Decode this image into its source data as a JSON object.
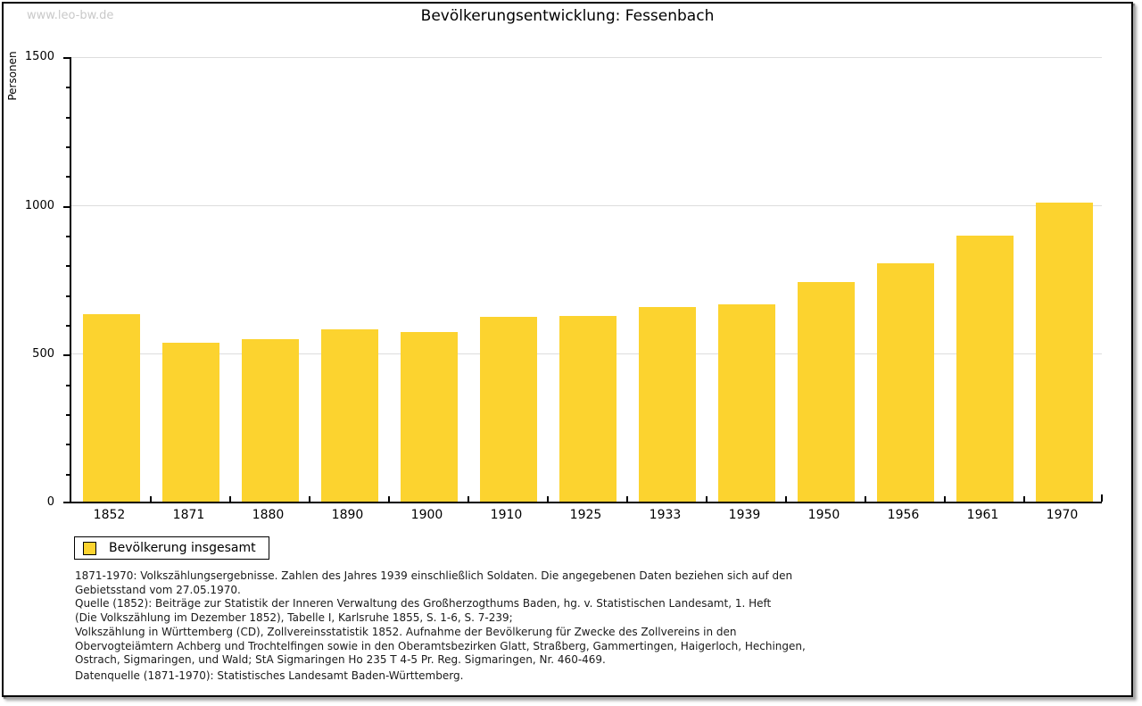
{
  "page": {
    "watermark": "www.leo-bw.de"
  },
  "chart_data": {
    "type": "bar",
    "title": "Bevölkerungsentwicklung: Fessenbach",
    "xlabel": "",
    "ylabel": "Personen",
    "categories": [
      "1852",
      "1871",
      "1880",
      "1890",
      "1900",
      "1910",
      "1925",
      "1933",
      "1939",
      "1950",
      "1956",
      "1961",
      "1970"
    ],
    "series": [
      {
        "name": "Bevölkerung insgesamt",
        "color": "#FCD32F",
        "values": [
          630,
          533,
          545,
          578,
          569,
          622,
          625,
          653,
          662,
          739,
          802,
          893,
          1004
        ]
      }
    ],
    "ylim": [
      0,
      1500
    ],
    "yticks_major": [
      0,
      500,
      1000,
      1500
    ],
    "ytick_minor_step": 100,
    "grid": true,
    "gridline_color": "#dddddd",
    "legend_position": "bottom-left"
  },
  "footer": {
    "notes": [
      "1871-1970: Volkszählungsergebnisse. Zahlen des Jahres 1939 einschließlich Soldaten. Die angegebenen Daten beziehen sich auf den",
      "Gebietsstand vom 27.05.1970.",
      "Quelle (1852): Beiträge zur Statistik der Inneren Verwaltung des Großherzogthums Baden, hg. v. Statistischen Landesamt, 1. Heft",
      "(Die Volkszählung im Dezember 1852), Tabelle I, Karlsruhe 1855, S. 1-6, S. 7-239;",
      "Volkszählung in Württemberg (CD), Zollvereinsstatistik 1852. Aufnahme der Bevölkerung für Zwecke des Zollvereins in den",
      "Obervogteiämtern Achberg und Trochtelfingen sowie in den Oberamtsbezirken Glatt, Straßberg, Gammertingen, Haigerloch, Hechingen,",
      "Ostrach, Sigmaringen, und Wald; StA Sigmaringen Ho 235 T 4-5 Pr. Reg. Sigmaringen, Nr. 460-469."
    ],
    "datasource": "Datenquelle (1871-1970): Statistisches Landesamt Baden-Württemberg."
  }
}
